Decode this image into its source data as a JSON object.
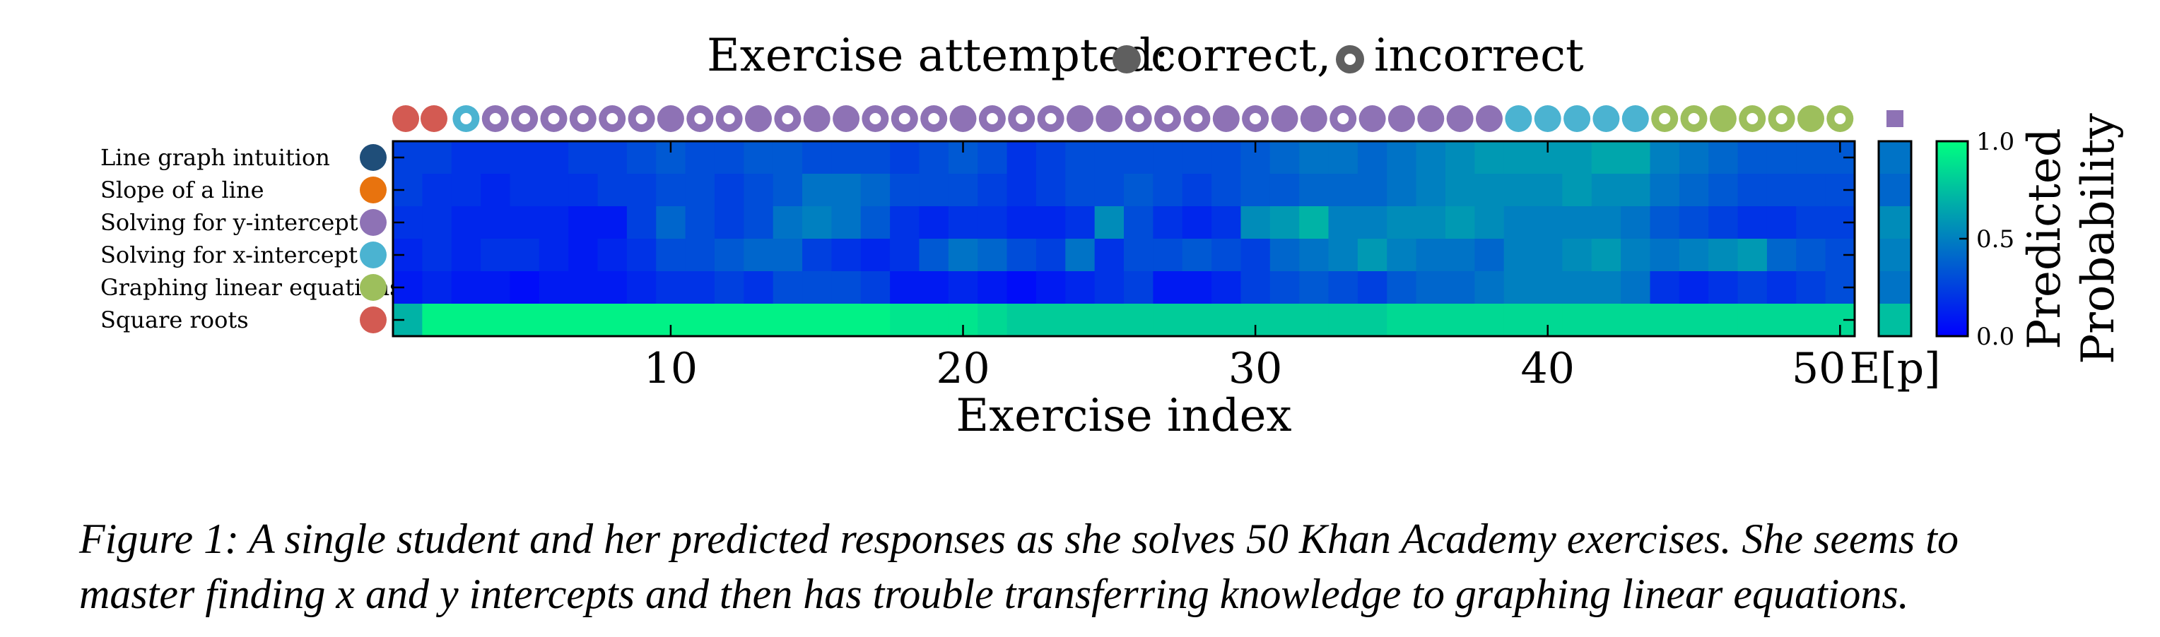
{
  "chart_data": {
    "type": "heatmap",
    "title": "Exercise attempted:",
    "legend": {
      "correct_label": "correct,",
      "incorrect_label": "incorrect",
      "placement": "top"
    },
    "xlabel": "Exercise index",
    "x_ticks": [
      10,
      20,
      30,
      40,
      50
    ],
    "x_tick_labels": [
      "10",
      "20",
      "30",
      "40",
      "50"
    ],
    "xlim": [
      0.5,
      50.5
    ],
    "rows": [
      {
        "name": "Line graph intuition",
        "color": "#1f4e79"
      },
      {
        "name": "Slope of a line",
        "color": "#e8730e"
      },
      {
        "name": "Solving for y-intercept",
        "color": "#8e72b5"
      },
      {
        "name": "Solving for x-intercept",
        "color": "#4bb3d1"
      },
      {
        "name": "Graphing linear equations",
        "color": "#9dbf5c"
      },
      {
        "name": "Square roots",
        "color": "#d35a52"
      }
    ],
    "attempts": [
      {
        "row": 5,
        "correct": true
      },
      {
        "row": 5,
        "correct": true
      },
      {
        "row": 3,
        "correct": false
      },
      {
        "row": 2,
        "correct": false
      },
      {
        "row": 2,
        "correct": false
      },
      {
        "row": 2,
        "correct": false
      },
      {
        "row": 2,
        "correct": false
      },
      {
        "row": 2,
        "correct": false
      },
      {
        "row": 2,
        "correct": false
      },
      {
        "row": 2,
        "correct": true
      },
      {
        "row": 2,
        "correct": false
      },
      {
        "row": 2,
        "correct": false
      },
      {
        "row": 2,
        "correct": true
      },
      {
        "row": 2,
        "correct": false
      },
      {
        "row": 2,
        "correct": true
      },
      {
        "row": 2,
        "correct": true
      },
      {
        "row": 2,
        "correct": false
      },
      {
        "row": 2,
        "correct": false
      },
      {
        "row": 2,
        "correct": false
      },
      {
        "row": 2,
        "correct": true
      },
      {
        "row": 2,
        "correct": false
      },
      {
        "row": 2,
        "correct": false
      },
      {
        "row": 2,
        "correct": false
      },
      {
        "row": 2,
        "correct": true
      },
      {
        "row": 2,
        "correct": true
      },
      {
        "row": 2,
        "correct": false
      },
      {
        "row": 2,
        "correct": false
      },
      {
        "row": 2,
        "correct": false
      },
      {
        "row": 2,
        "correct": true
      },
      {
        "row": 2,
        "correct": false
      },
      {
        "row": 2,
        "correct": true
      },
      {
        "row": 2,
        "correct": true
      },
      {
        "row": 2,
        "correct": false
      },
      {
        "row": 2,
        "correct": true
      },
      {
        "row": 2,
        "correct": true
      },
      {
        "row": 2,
        "correct": true
      },
      {
        "row": 2,
        "correct": true
      },
      {
        "row": 2,
        "correct": true
      },
      {
        "row": 3,
        "correct": true
      },
      {
        "row": 3,
        "correct": true
      },
      {
        "row": 3,
        "correct": true
      },
      {
        "row": 3,
        "correct": true
      },
      {
        "row": 3,
        "correct": true
      },
      {
        "row": 4,
        "correct": false
      },
      {
        "row": 4,
        "correct": false
      },
      {
        "row": 4,
        "correct": true
      },
      {
        "row": 4,
        "correct": false
      },
      {
        "row": 4,
        "correct": false
      },
      {
        "row": 4,
        "correct": true
      },
      {
        "row": 4,
        "correct": false
      }
    ],
    "values": [
      [
        0.25,
        0.25,
        0.2,
        0.2,
        0.2,
        0.2,
        0.25,
        0.25,
        0.3,
        0.35,
        0.3,
        0.3,
        0.35,
        0.35,
        0.3,
        0.3,
        0.3,
        0.25,
        0.3,
        0.35,
        0.3,
        0.2,
        0.25,
        0.3,
        0.3,
        0.3,
        0.3,
        0.3,
        0.3,
        0.35,
        0.4,
        0.45,
        0.45,
        0.4,
        0.45,
        0.5,
        0.55,
        0.6,
        0.6,
        0.6,
        0.6,
        0.65,
        0.65,
        0.5,
        0.45,
        0.4,
        0.35,
        0.35,
        0.35,
        0.35
      ],
      [
        0.25,
        0.2,
        0.2,
        0.15,
        0.2,
        0.2,
        0.2,
        0.25,
        0.25,
        0.3,
        0.3,
        0.25,
        0.3,
        0.35,
        0.45,
        0.45,
        0.4,
        0.3,
        0.3,
        0.3,
        0.25,
        0.2,
        0.25,
        0.3,
        0.3,
        0.35,
        0.3,
        0.25,
        0.3,
        0.35,
        0.35,
        0.4,
        0.4,
        0.4,
        0.45,
        0.5,
        0.55,
        0.55,
        0.55,
        0.55,
        0.6,
        0.55,
        0.55,
        0.45,
        0.4,
        0.35,
        0.3,
        0.3,
        0.3,
        0.3
      ],
      [
        0.2,
        0.2,
        0.15,
        0.15,
        0.15,
        0.15,
        0.1,
        0.1,
        0.25,
        0.4,
        0.3,
        0.25,
        0.3,
        0.45,
        0.5,
        0.45,
        0.35,
        0.2,
        0.15,
        0.2,
        0.2,
        0.15,
        0.15,
        0.2,
        0.55,
        0.3,
        0.2,
        0.15,
        0.2,
        0.55,
        0.6,
        0.7,
        0.5,
        0.5,
        0.55,
        0.55,
        0.6,
        0.55,
        0.5,
        0.5,
        0.5,
        0.5,
        0.45,
        0.35,
        0.3,
        0.25,
        0.2,
        0.2,
        0.25,
        0.25
      ],
      [
        0.15,
        0.2,
        0.15,
        0.2,
        0.2,
        0.15,
        0.1,
        0.15,
        0.2,
        0.3,
        0.3,
        0.35,
        0.4,
        0.4,
        0.25,
        0.2,
        0.15,
        0.2,
        0.35,
        0.45,
        0.4,
        0.3,
        0.25,
        0.45,
        0.2,
        0.3,
        0.3,
        0.35,
        0.3,
        0.25,
        0.4,
        0.45,
        0.5,
        0.6,
        0.5,
        0.45,
        0.45,
        0.4,
        0.5,
        0.5,
        0.55,
        0.6,
        0.5,
        0.45,
        0.5,
        0.55,
        0.6,
        0.4,
        0.35,
        0.3
      ],
      [
        0.1,
        0.15,
        0.1,
        0.1,
        0.05,
        0.1,
        0.1,
        0.1,
        0.15,
        0.2,
        0.2,
        0.25,
        0.2,
        0.3,
        0.3,
        0.3,
        0.25,
        0.1,
        0.1,
        0.15,
        0.1,
        0.05,
        0.1,
        0.15,
        0.2,
        0.25,
        0.1,
        0.1,
        0.15,
        0.25,
        0.3,
        0.35,
        0.3,
        0.25,
        0.35,
        0.4,
        0.4,
        0.45,
        0.5,
        0.5,
        0.5,
        0.5,
        0.45,
        0.2,
        0.15,
        0.2,
        0.25,
        0.2,
        0.25,
        0.3
      ],
      [
        0.7,
        0.95,
        0.95,
        0.95,
        0.95,
        0.95,
        0.95,
        0.95,
        0.95,
        0.95,
        0.95,
        0.95,
        0.95,
        0.95,
        0.95,
        0.95,
        0.95,
        0.9,
        0.9,
        0.9,
        0.85,
        0.8,
        0.8,
        0.8,
        0.8,
        0.8,
        0.8,
        0.8,
        0.8,
        0.8,
        0.8,
        0.8,
        0.8,
        0.8,
        0.85,
        0.85,
        0.85,
        0.85,
        0.85,
        0.85,
        0.85,
        0.85,
        0.85,
        0.85,
        0.85,
        0.85,
        0.85,
        0.85,
        0.85,
        0.85
      ]
    ],
    "expected": {
      "label": "E[p]",
      "values": [
        0.45,
        0.4,
        0.55,
        0.5,
        0.45,
        0.75
      ],
      "marker_row": 2
    },
    "colorbar": {
      "label_lines": [
        "Predicted",
        "Probability"
      ],
      "range": [
        0,
        1
      ],
      "ticks": [
        0,
        0.5,
        1
      ],
      "tick_labels": [
        "0.0",
        "0.5",
        "1.0"
      ],
      "colors": [
        "#0000ff",
        "#00ff80"
      ]
    }
  },
  "caption": {
    "line1": "Figure 1: A single student and her predicted responses as she solves 50 Khan Academy exercises. She seems to",
    "line2": "master finding x and y intercepts and then has trouble transferring knowledge to graphing linear equations."
  }
}
